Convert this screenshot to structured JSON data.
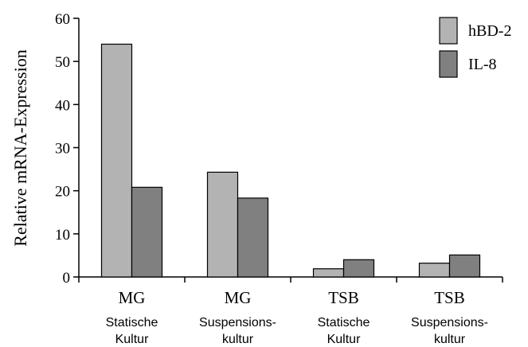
{
  "chart_data": {
    "type": "bar",
    "ylabel": "Relative mRNA-Expression",
    "ylim": [
      0,
      60
    ],
    "yticks": [
      0,
      10,
      20,
      30,
      40,
      50,
      60
    ],
    "categories": [
      {
        "main": "MG",
        "sub1": "Statische",
        "sub2": "Kultur"
      },
      {
        "main": "MG",
        "sub1": "Suspensions-",
        "sub2": "kultur"
      },
      {
        "main": "TSB",
        "sub1": "Statische",
        "sub2": "Kultur"
      },
      {
        "main": "TSB",
        "sub1": "Suspensions-",
        "sub2": "kultur"
      }
    ],
    "series": [
      {
        "name": "hBD-2",
        "color": "#b3b3b3",
        "values": [
          54,
          24.3,
          1.9,
          3.2
        ]
      },
      {
        "name": "IL-8",
        "color": "#808080",
        "values": [
          20.8,
          18.3,
          4,
          5.1
        ]
      }
    ],
    "legend_position": "top-right",
    "grid": false
  }
}
